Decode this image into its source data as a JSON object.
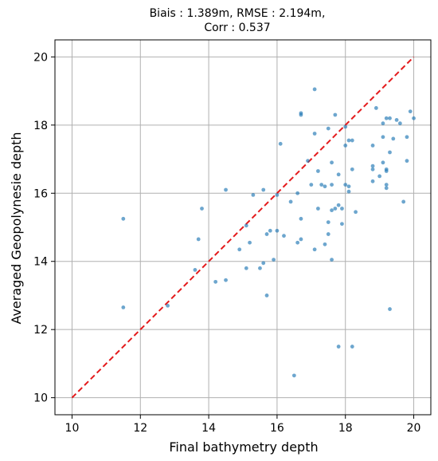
{
  "chart_data": {
    "type": "scatter",
    "title_line1": "Biais : 1.389m, RMSE : 2.194m,",
    "title_line2": "Corr : 0.537",
    "xlabel": "Final bathymetry depth",
    "ylabel": "Averaged Geopolynesie depth",
    "xlim": [
      9.5,
      20.5
    ],
    "ylim": [
      9.5,
      20.5
    ],
    "xticks": [
      "10",
      "12",
      "14",
      "16",
      "18",
      "20"
    ],
    "yticks": [
      "10",
      "12",
      "14",
      "16",
      "18",
      "20"
    ],
    "grid": true,
    "point_color": "#1f77b4",
    "reference_line": {
      "x": [
        10,
        20
      ],
      "y": [
        10,
        20
      ],
      "color": "#e41a1c",
      "style": "dashed"
    },
    "points": {
      "x": [
        11.5,
        11.5,
        12.8,
        13.6,
        13.7,
        13.8,
        14.2,
        14.5,
        14.5,
        14.9,
        15.1,
        15.1,
        15.2,
        15.3,
        15.5,
        15.6,
        15.6,
        15.7,
        15.7,
        15.8,
        15.9,
        16.0,
        16.0,
        16.1,
        16.2,
        16.4,
        16.5,
        16.6,
        16.6,
        16.7,
        16.7,
        16.7,
        16.7,
        16.9,
        17.0,
        17.1,
        17.1,
        17.1,
        17.2,
        17.2,
        17.3,
        17.4,
        17.4,
        17.5,
        17.5,
        17.5,
        17.6,
        17.6,
        17.6,
        17.6,
        17.7,
        17.7,
        17.8,
        17.8,
        17.8,
        17.9,
        17.9,
        18.0,
        18.0,
        18.0,
        18.1,
        18.1,
        18.1,
        18.2,
        18.2,
        18.2,
        18.3,
        18.8,
        18.8,
        18.8,
        18.8,
        18.9,
        19.0,
        19.1,
        19.1,
        19.1,
        19.2,
        19.2,
        19.2,
        19.2,
        19.2,
        19.3,
        19.3,
        19.3,
        19.4,
        19.5,
        19.6,
        19.7,
        19.8,
        19.8,
        19.9,
        20.0
      ],
      "y": [
        15.25,
        12.65,
        12.7,
        13.75,
        14.65,
        15.55,
        13.4,
        13.45,
        16.1,
        14.35,
        13.8,
        15.05,
        14.55,
        15.95,
        13.8,
        16.1,
        13.95,
        13.0,
        14.8,
        14.9,
        14.05,
        15.95,
        14.9,
        17.45,
        14.75,
        15.75,
        10.65,
        14.55,
        16.0,
        18.3,
        18.35,
        15.25,
        14.65,
        16.95,
        16.25,
        19.05,
        14.35,
        17.75,
        16.65,
        15.55,
        16.25,
        14.5,
        16.2,
        17.9,
        14.8,
        15.15,
        14.05,
        15.5,
        16.25,
        16.9,
        15.55,
        18.3,
        16.55,
        15.65,
        11.5,
        15.1,
        15.55,
        17.95,
        16.25,
        17.4,
        16.05,
        16.2,
        17.55,
        11.5,
        16.7,
        17.55,
        15.45,
        17.4,
        16.8,
        16.7,
        16.35,
        18.5,
        16.5,
        16.9,
        18.05,
        17.65,
        18.2,
        16.15,
        16.25,
        16.7,
        16.65,
        12.6,
        17.2,
        18.2,
        17.6,
        18.15,
        18.05,
        15.75,
        17.65,
        16.95,
        18.4,
        18.2
      ]
    }
  }
}
